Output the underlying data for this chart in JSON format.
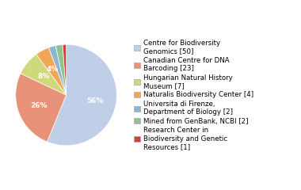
{
  "labels": [
    "Centre for Biodiversity\nGenomics [50]",
    "Canadian Centre for DNA\nBarcoding [23]",
    "Hungarian Natural History\nMuseum [7]",
    "Naturalis Biodiversity Center [4]",
    "Universita di Firenze,\nDepartment of Biology [2]",
    "Mined from GenBank, NCBI [2]",
    "Research Center in\nBiodiversity and Genetic\nResources [1]"
  ],
  "values": [
    50,
    23,
    7,
    4,
    2,
    2,
    1
  ],
  "colors": [
    "#bfcfe8",
    "#e8927a",
    "#cdd97a",
    "#f0a857",
    "#8fb5d5",
    "#8ec48e",
    "#cc4433"
  ],
  "startangle": 90,
  "background_color": "#ffffff",
  "text_color": "#ffffff",
  "font_size": 6.5,
  "legend_font_size": 6.2,
  "pct_threshold": 4
}
